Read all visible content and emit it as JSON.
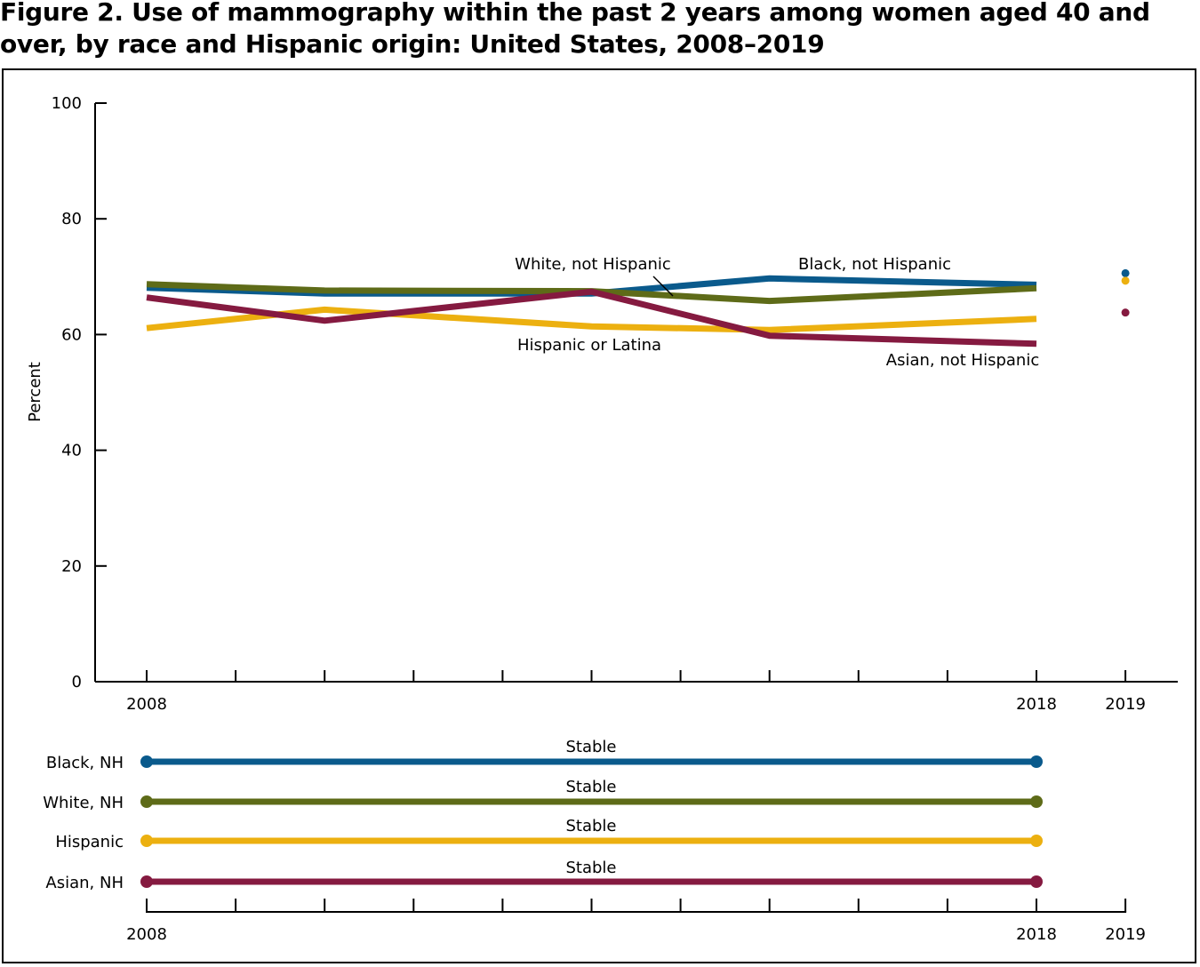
{
  "title": "Figure 2. Use of mammography within the past 2 years among women aged 40 and over, by race and Hispanic origin: United States, 2008–2019",
  "colors": {
    "black_nh": "#0a5a8c",
    "white_nh": "#5e6b18",
    "hispanic": "#ecb010",
    "asian_nh": "#851a40"
  },
  "chart_data": [
    {
      "type": "line",
      "xlabel": "",
      "ylabel": "Percent",
      "ylim": [
        0,
        100
      ],
      "yticks": [
        0,
        20,
        40,
        60,
        80,
        100
      ],
      "xlim": [
        2007.43,
        2019.58
      ],
      "xticks": [
        2008,
        2009,
        2010,
        2011,
        2012,
        2013,
        2014,
        2015,
        2016,
        2017,
        2018,
        2019
      ],
      "xtick_labels": [
        {
          "x": 2008,
          "label": "2008"
        },
        {
          "x": 2018,
          "label": "2018"
        },
        {
          "x": 2019,
          "label": "2019"
        }
      ],
      "series": [
        {
          "key": "black_nh",
          "name": "Black, not Hispanic",
          "color": "#0a5a8c",
          "x": [
            2008,
            2010,
            2013,
            2015,
            2018
          ],
          "y": [
            68.1,
            67.1,
            67.1,
            69.7,
            68.6
          ],
          "point_2019": 70.6
        },
        {
          "key": "white_nh",
          "name": "White, not Hispanic",
          "color": "#5e6b18",
          "x": [
            2008,
            2010,
            2013,
            2015,
            2018
          ],
          "y": [
            68.7,
            67.6,
            67.5,
            65.8,
            68.0
          ]
        },
        {
          "key": "hispanic",
          "name": "Hispanic or Latina",
          "color": "#ecb010",
          "x": [
            2008,
            2010,
            2013,
            2015,
            2018
          ],
          "y": [
            61.1,
            64.3,
            61.4,
            60.8,
            62.7
          ],
          "point_2019": 69.3
        },
        {
          "key": "asian_nh",
          "name": "Asian, not Hispanic",
          "color": "#851a40",
          "x": [
            2008,
            2010,
            2013,
            2015,
            2018
          ],
          "y": [
            66.4,
            62.4,
            67.4,
            59.8,
            58.4
          ],
          "point_2019": 63.8
        }
      ],
      "annotations": [
        {
          "text": "White, not Hispanic",
          "target": "white_nh"
        },
        {
          "text": "Black, not Hispanic",
          "target": "black_nh"
        },
        {
          "text": "Hispanic or Latina",
          "target": "hispanic"
        },
        {
          "text": "Asian, not Hispanic",
          "target": "asian_nh"
        }
      ]
    },
    {
      "type": "trend",
      "xlim": [
        2007.43,
        2019.58
      ],
      "xticks": [
        2008,
        2009,
        2010,
        2011,
        2012,
        2013,
        2014,
        2015,
        2016,
        2017,
        2018,
        2019
      ],
      "xtick_labels": [
        {
          "x": 2008,
          "label": "2008"
        },
        {
          "x": 2018,
          "label": "2018"
        },
        {
          "x": 2019,
          "label": "2019"
        }
      ],
      "rows": [
        {
          "key": "black_nh",
          "label": "Black, NH",
          "trend": "Stable",
          "start": 2008,
          "end": 2018,
          "color": "#0a5a8c"
        },
        {
          "key": "white_nh",
          "label": "White, NH",
          "trend": "Stable",
          "start": 2008,
          "end": 2018,
          "color": "#5e6b18"
        },
        {
          "key": "hispanic",
          "label": "Hispanic",
          "trend": "Stable",
          "start": 2008,
          "end": 2018,
          "color": "#ecb010"
        },
        {
          "key": "asian_nh",
          "label": "Asian, NH",
          "trend": "Stable",
          "start": 2008,
          "end": 2018,
          "color": "#851a40"
        }
      ]
    }
  ]
}
